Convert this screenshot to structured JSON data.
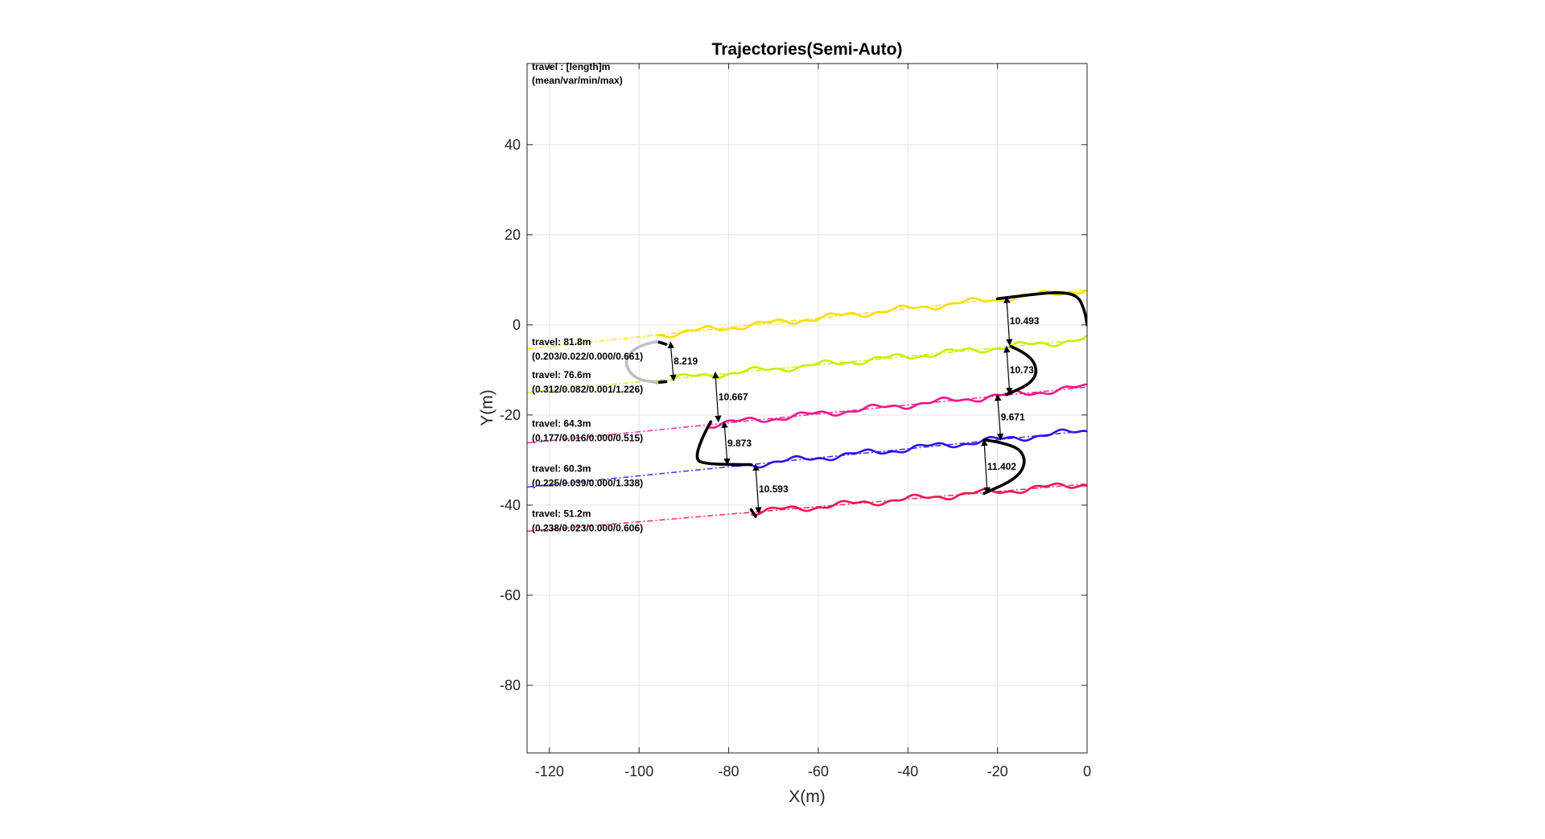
{
  "chart_data": {
    "type": "line",
    "title": "Trajectories(Semi-Auto)",
    "xlabel": "X(m)",
    "ylabel": "Y(m)",
    "xlim": [
      -125,
      0
    ],
    "ylim": [
      -95,
      58
    ],
    "xticks": [
      -120,
      -100,
      -80,
      -60,
      -40,
      -20,
      0
    ],
    "yticks": [
      40,
      20,
      0,
      -20,
      -40,
      -60,
      -80
    ],
    "grid": true,
    "legend_header": [
      "travel : [length]m",
      "(mean/var/min/max)"
    ],
    "series": [
      {
        "color": "#f5e000",
        "reference": [
          [
            -125,
            -5.3
          ],
          [
            0,
            7.8
          ]
        ],
        "solid_start": -96,
        "travel": "travel: 81.8m",
        "stats": "(0.203/0.022/0.000/0.661)",
        "label_y": -4.5
      },
      {
        "color": "#c6f000",
        "reference": [
          [
            -125,
            -15.0
          ],
          [
            0,
            -3.2
          ]
        ],
        "solid_start": -93,
        "travel": "travel: 76.6m",
        "stats": "(0.312/0.082/0.001/1.226)",
        "label_y": -11.8
      },
      {
        "color": "#f0148c",
        "reference": [
          [
            -125,
            -26.2
          ],
          [
            0,
            -13.8
          ]
        ],
        "solid_start": -85,
        "travel": "travel: 64.3m",
        "stats": "(0.177/0.016/0.000/0.515)",
        "label_y": -22.6
      },
      {
        "color": "#2814f0",
        "reference": [
          [
            -125,
            -36.0
          ],
          [
            0,
            -23.5
          ]
        ],
        "solid_start": -80,
        "travel": "travel: 60.3m",
        "stats": "(0.225/0.039/0.000/1.338)",
        "label_y": -32.6
      },
      {
        "color": "#f01450",
        "reference": [
          [
            -125,
            -45.8
          ],
          [
            0,
            -35.3
          ]
        ],
        "solid_start": -75,
        "travel": "travel: 51.2m",
        "stats": "(0.238/0.023/0.000/0.606)",
        "label_y": -42.6
      }
    ],
    "turn_paths": [
      {
        "color": "#000000",
        "points": [
          [
            -20,
            5.8
          ],
          [
            -12,
            6.8
          ],
          [
            -6,
            7.3
          ],
          [
            -2,
            6.5
          ],
          [
            -0.5,
            3
          ],
          [
            0,
            0
          ]
        ]
      },
      {
        "color": "#000000",
        "points": [
          [
            -17,
            -4.8
          ],
          [
            -13,
            -6.5
          ],
          [
            -11,
            -10
          ],
          [
            -12.5,
            -13
          ],
          [
            -18,
            -15.5
          ]
        ]
      },
      {
        "color": "#000000",
        "points": [
          [
            -84,
            -21.5
          ],
          [
            -86,
            -25
          ],
          [
            -87.5,
            -30
          ],
          [
            -85,
            -30.8
          ],
          [
            -80,
            -31
          ],
          [
            -75,
            -31
          ]
        ]
      },
      {
        "color": "#000000",
        "points": [
          [
            -23,
            -25.5
          ],
          [
            -16,
            -26.5
          ],
          [
            -13.5,
            -30
          ],
          [
            -15.5,
            -34
          ],
          [
            -23,
            -37.4
          ]
        ]
      },
      {
        "color": "#000000",
        "points": [
          [
            -96,
            -3.7
          ],
          [
            -94,
            -4.3
          ]
        ]
      },
      {
        "color": "#000000",
        "points": [
          [
            -96,
            -12.8
          ],
          [
            -94,
            -12.6
          ]
        ]
      },
      {
        "color": "#000000",
        "points": [
          [
            -75,
            -41
          ],
          [
            -74,
            -42.5
          ]
        ]
      },
      {
        "color": "#c0c0c0",
        "points": [
          [
            -96,
            -3.7
          ],
          [
            -100.5,
            -4.5
          ],
          [
            -103.5,
            -8.2
          ],
          [
            -101,
            -12
          ],
          [
            -96,
            -12.8
          ]
        ]
      }
    ],
    "distances": [
      {
        "label": "8.219",
        "x": -93,
        "y1": -3.8,
        "y2": -12.4
      },
      {
        "label": "10.493",
        "x": -18,
        "y1": 6.2,
        "y2": -4.5
      },
      {
        "label": "10.73",
        "x": -18,
        "y1": -4.8,
        "y2": -15.3
      },
      {
        "label": "10.667",
        "x": -83,
        "y1": -10.5,
        "y2": -21.5
      },
      {
        "label": "9.671",
        "x": -20,
        "y1": -15.5,
        "y2": -25.5
      },
      {
        "label": "9.873",
        "x": -81,
        "y1": -21.5,
        "y2": -31
      },
      {
        "label": "11.402",
        "x": -23,
        "y1": -25.5,
        "y2": -37.4
      },
      {
        "label": "10.593",
        "x": -74,
        "y1": -31,
        "y2": -41.8
      }
    ]
  }
}
